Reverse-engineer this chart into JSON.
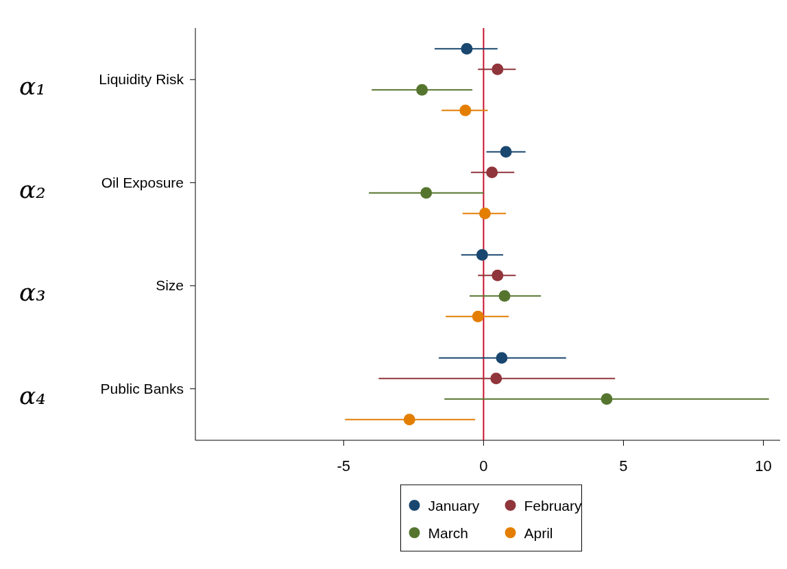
{
  "chart_data": {
    "type": "scatter",
    "orientation": "horizontal",
    "categories": [
      "Liquidity Risk",
      "Oil Exposure",
      "Size",
      "Public Banks"
    ],
    "xlim": [
      -10.3,
      10.6
    ],
    "xticks": [
      -5,
      0,
      5,
      10
    ],
    "marker": "circle",
    "legend": "bottom",
    "grid": false,
    "ref_lines": [
      {
        "axis": "x",
        "value": 0,
        "color": "#c8102e"
      }
    ],
    "annotations": [
      "α₁",
      "α₂",
      "α₃",
      "α₄"
    ],
    "series": [
      {
        "name": "January",
        "color": "#1a476f",
        "values": [
          -0.6,
          0.8,
          -0.05,
          0.65
        ],
        "errors": [
          [
            -1.75,
            0.5
          ],
          [
            0.1,
            1.5
          ],
          [
            -0.8,
            0.7
          ],
          [
            -1.6,
            2.95
          ]
        ]
      },
      {
        "name": "February",
        "color": "#90353b",
        "values": [
          0.5,
          0.3,
          0.5,
          0.45
        ],
        "errors": [
          [
            -0.2,
            1.15
          ],
          [
            -0.45,
            1.1
          ],
          [
            -0.2,
            1.15
          ],
          [
            -3.75,
            4.7
          ]
        ]
      },
      {
        "name": "March",
        "color": "#55752f",
        "values": [
          -2.2,
          -2.05,
          0.75,
          4.4
        ],
        "errors": [
          [
            -4.0,
            -0.4
          ],
          [
            -4.1,
            0
          ],
          [
            -0.5,
            2.05
          ],
          [
            -1.4,
            10.2
          ]
        ]
      },
      {
        "name": "April",
        "color": "#e37e00",
        "values": [
          -0.65,
          0.05,
          -0.2,
          -2.65
        ],
        "errors": [
          [
            -1.5,
            0.15
          ],
          [
            -0.75,
            0.8
          ],
          [
            -1.35,
            0.9
          ],
          [
            -4.95,
            -0.3
          ]
        ]
      }
    ]
  }
}
